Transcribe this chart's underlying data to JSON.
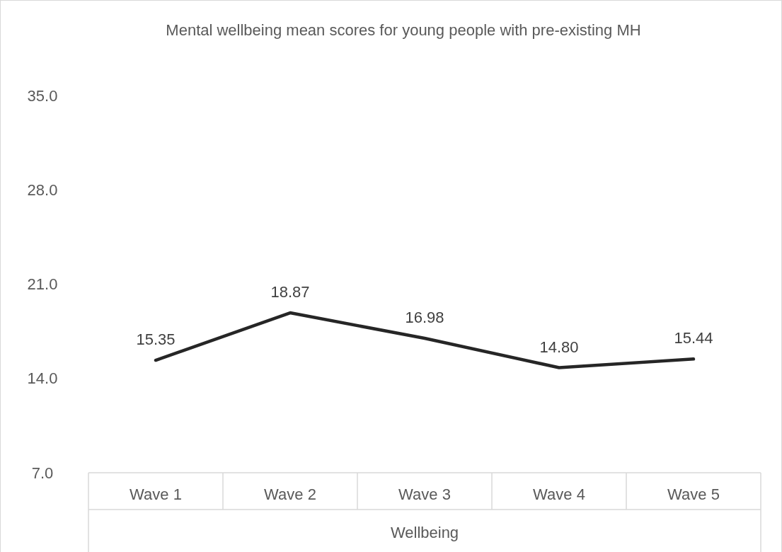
{
  "chart_data": {
    "type": "line",
    "title": "Mental wellbeing mean scores for young people with pre-existing MH",
    "xlabel": "Wellbeing",
    "categories": [
      "Wave 1",
      "Wave 2",
      "Wave 3",
      "Wave 4",
      "Wave 5"
    ],
    "series": [
      {
        "color": "#262626",
        "values": [
          15.35,
          18.87,
          16.98,
          14.8,
          15.44
        ],
        "value_labels": [
          "15.35",
          "18.87",
          "16.98",
          "14.80",
          "15.44"
        ]
      }
    ],
    "ylim": [
      7,
      35
    ],
    "yticks": [
      {
        "value": 7,
        "label": "7.0"
      },
      {
        "value": 14,
        "label": "14.0"
      },
      {
        "value": 21,
        "label": "21.0"
      },
      {
        "value": 28,
        "label": "28.0"
      },
      {
        "value": 35,
        "label": "35.0"
      }
    ],
    "grid": false,
    "marker": "none",
    "line_style": "solid"
  }
}
